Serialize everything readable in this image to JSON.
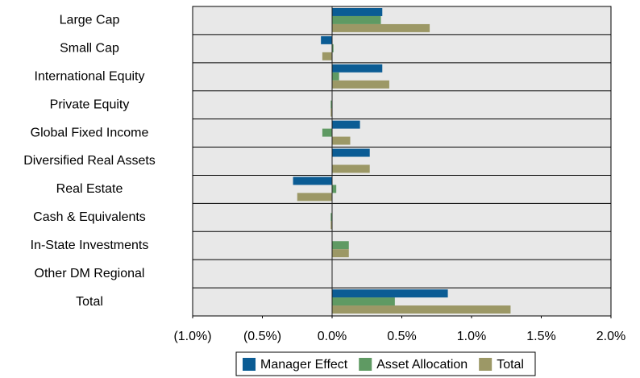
{
  "chart_data": {
    "type": "bar",
    "orientation": "horizontal",
    "categories": [
      "Large Cap",
      "Small Cap",
      "International Equity",
      "Private Equity",
      "Global Fixed Income",
      "Diversified Real Assets",
      "Real Estate",
      "Cash & Equivalents",
      "In-State Investments",
      "Other DM Regional",
      "Total"
    ],
    "series": [
      {
        "name": "Manager Effect",
        "color": "#0b5c94",
        "values": [
          0.36,
          -0.08,
          0.36,
          0.0,
          0.2,
          0.27,
          -0.28,
          0.0,
          0.0,
          0.0,
          0.83
        ]
      },
      {
        "name": "Asset Allocation",
        "color": "#5f9a63",
        "values": [
          0.35,
          0.01,
          0.05,
          -0.01,
          -0.07,
          0.0,
          0.03,
          -0.01,
          0.12,
          0.0,
          0.45
        ]
      },
      {
        "name": "Total",
        "color": "#9c9866",
        "values": [
          0.7,
          -0.07,
          0.41,
          -0.01,
          0.13,
          0.27,
          -0.25,
          -0.01,
          0.12,
          0.0,
          1.28
        ]
      }
    ],
    "xlim": [
      -1.0,
      2.0
    ],
    "xticks": [
      {
        "value": -1.0,
        "label": "(1.0%)"
      },
      {
        "value": -0.5,
        "label": "(0.5%)"
      },
      {
        "value": 0.0,
        "label": "0.0%"
      },
      {
        "value": 0.5,
        "label": "0.5%"
      },
      {
        "value": 1.0,
        "label": "1.0%"
      },
      {
        "value": 1.5,
        "label": "1.5%"
      },
      {
        "value": 2.0,
        "label": "2.0%"
      }
    ],
    "negative_tick_color": "#e8101a",
    "legend": "bottom"
  }
}
